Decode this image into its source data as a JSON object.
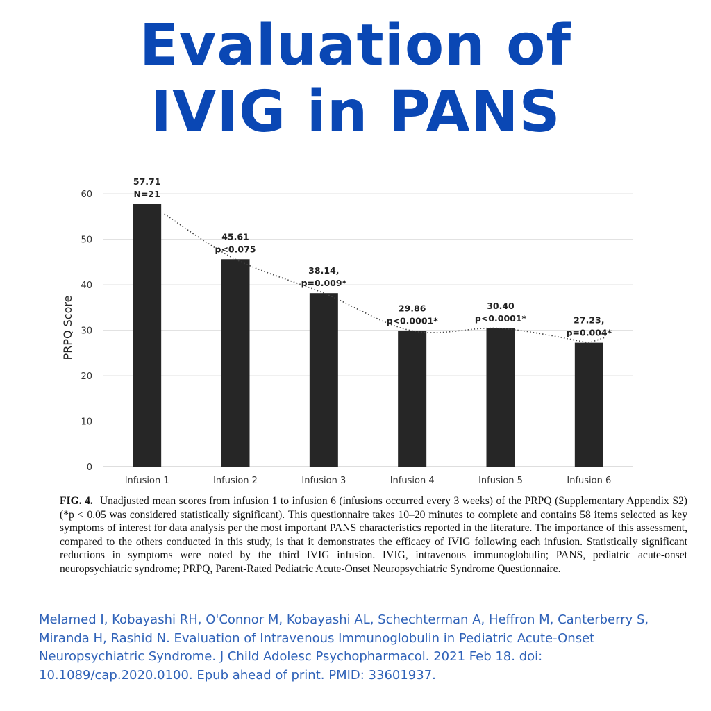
{
  "header": {
    "title_line1": "Evaluation of",
    "title_line2": "IVIG in PANS"
  },
  "chart_data": {
    "type": "bar",
    "ylabel": "PRPQ Score",
    "xlabel": "",
    "ylim": [
      0,
      60
    ],
    "yticks": [
      0,
      10,
      20,
      30,
      40,
      50,
      60
    ],
    "grid": true,
    "categories": [
      "Infusion 1",
      "Infusion 2",
      "Infusion 3",
      "Infusion 4",
      "Infusion 5",
      "Infusion 6"
    ],
    "values": [
      57.71,
      45.61,
      38.14,
      29.86,
      30.4,
      27.23
    ],
    "labels": [
      [
        "57.71",
        "N=21"
      ],
      [
        "45.61",
        "p<0.075"
      ],
      [
        "38.14,",
        "p=0.009*"
      ],
      [
        "29.86",
        "p<0.0001*"
      ],
      [
        "30.40",
        "p<0.0001*"
      ],
      [
        "27.23,",
        "p=0.004*"
      ]
    ],
    "trendline": "dotted",
    "bar_color": "#262626"
  },
  "caption": {
    "fig_label": "FIG. 4.",
    "text": "Unadjusted mean scores from infusion 1 to infusion 6 (infusions occurred every 3 weeks) of the PRPQ (Supplementary Appendix S2) (*p < 0.05 was considered statistically significant). This questionnaire takes 10–20 minutes to complete and contains 58 items selected as key symptoms of interest for data analysis per the most important PANS characteristics reported in the literature. The importance of this assessment, compared to the others conducted in this study, is that it demonstrates the efficacy of IVIG following each infusion. Statistically significant reductions in symptoms were noted by the third IVIG infusion. IVIG, intravenous immunoglobulin; PANS, pediatric acute-onset neuropsychiatric syndrome; PRPQ, Parent-Rated Pediatric Acute-Onset Neuropsychiatric Syndrome Questionnaire."
  },
  "citation": {
    "text": "Melamed I, Kobayashi RH, O'Connor M, Kobayashi AL, Schechterman A, Heffron M, Canterberry S, Miranda H, Rashid N. Evaluation of Intravenous Immunoglobulin in Pediatric Acute-Onset Neuropsychiatric Syndrome. J Child Adolesc Psychopharmacol. 2021 Feb 18. doi: 10.1089/cap.2020.0100. Epub ahead of print. PMID: 33601937."
  }
}
